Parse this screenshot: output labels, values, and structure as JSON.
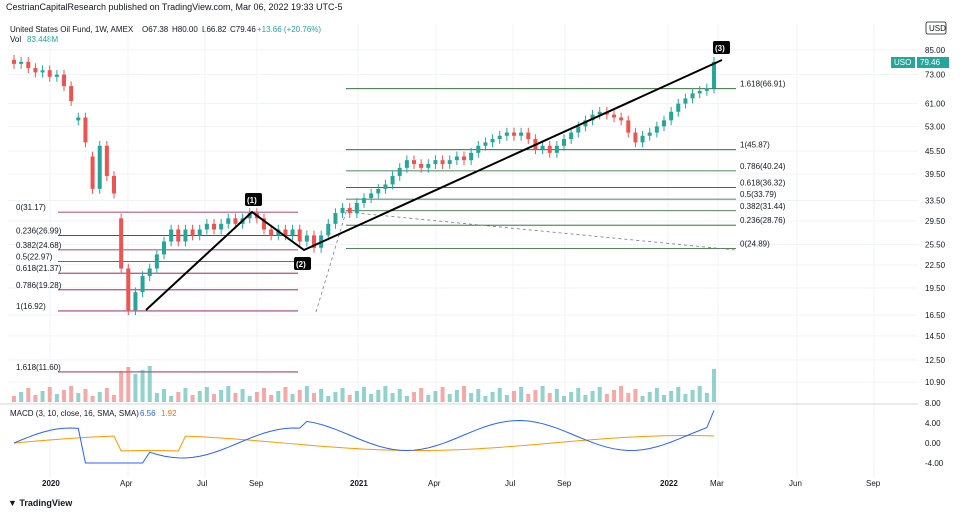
{
  "header": {
    "publisher": "CestrianCapitalResearch published on TradingView.com, Mar 06, 2022 19:33 UTC-5",
    "symbol_line": "United States Oil Fund, 1W, AMEX",
    "o": "O67.38",
    "h": "H80.00",
    "l": "L66.82",
    "c": "C79.46",
    "chg": "+13.66 (+20.76%)",
    "vol_label": "Vol",
    "vol_value": "83.448M",
    "currency": "USD"
  },
  "price_badge": {
    "symbol": "USO",
    "value": "79.46"
  },
  "macd": {
    "label": "MACD (3, 10, close, 16, SMA, SMA)",
    "v1": "6.56",
    "v2": "1.92"
  },
  "footer": {
    "logo": "TradingView"
  },
  "chart_data": {
    "type": "candlestick",
    "title": "United States Oil Fund, 1W, AMEX",
    "y_axis_ticks": [
      "85.00",
      "73.00",
      "61.00",
      "53.00",
      "45.50",
      "39.50",
      "33.50",
      "29.50",
      "25.50",
      "22.50",
      "19.50",
      "16.50",
      "14.50",
      "12.50",
      "10.90"
    ],
    "macd_ticks": [
      "8.00",
      "4.00",
      "0.00",
      "-4.00"
    ],
    "x_axis_ticks": [
      "2020",
      "Apr",
      "Jul",
      "Sep",
      "2021",
      "Apr",
      "Jul",
      "Sep",
      "2022",
      "Mar",
      "Jun",
      "Sep"
    ],
    "candles": [
      {
        "o": 80,
        "c": 78
      },
      {
        "o": 78,
        "c": 79
      },
      {
        "o": 79,
        "c": 76
      },
      {
        "o": 76,
        "c": 74
      },
      {
        "o": 74,
        "c": 75
      },
      {
        "o": 75,
        "c": 72
      },
      {
        "o": 72,
        "c": 73
      },
      {
        "o": 73,
        "c": 68
      },
      {
        "o": 68,
        "c": 62
      },
      {
        "o": 55,
        "c": 56
      },
      {
        "o": 56,
        "c": 48
      },
      {
        "o": 44,
        "c": 36
      },
      {
        "o": 36,
        "c": 47
      },
      {
        "o": 47,
        "c": 39
      },
      {
        "o": 39,
        "c": 35
      },
      {
        "o": 30,
        "c": 22
      },
      {
        "o": 22,
        "c": 17
      },
      {
        "o": 17,
        "c": 19
      },
      {
        "o": 19,
        "c": 21
      },
      {
        "o": 21,
        "c": 22
      },
      {
        "o": 22,
        "c": 24
      },
      {
        "o": 24,
        "c": 26
      },
      {
        "o": 26,
        "c": 28
      },
      {
        "o": 28,
        "c": 26
      },
      {
        "o": 26,
        "c": 28
      },
      {
        "o": 28,
        "c": 27
      },
      {
        "o": 27,
        "c": 28
      },
      {
        "o": 28,
        "c": 29
      },
      {
        "o": 29,
        "c": 28
      },
      {
        "o": 28,
        "c": 29
      },
      {
        "o": 29,
        "c": 30
      },
      {
        "o": 30,
        "c": 29
      },
      {
        "o": 29,
        "c": 30
      },
      {
        "o": 30,
        "c": 31
      },
      {
        "o": 31,
        "c": 30
      },
      {
        "o": 30,
        "c": 28
      },
      {
        "o": 28,
        "c": 27
      },
      {
        "o": 27,
        "c": 28
      },
      {
        "o": 28,
        "c": 27
      },
      {
        "o": 27,
        "c": 28
      },
      {
        "o": 28,
        "c": 26
      },
      {
        "o": 26,
        "c": 27
      },
      {
        "o": 27,
        "c": 25
      },
      {
        "o": 25,
        "c": 27
      },
      {
        "o": 27,
        "c": 29
      },
      {
        "o": 29,
        "c": 31
      },
      {
        "o": 31,
        "c": 32
      },
      {
        "o": 32,
        "c": 31
      },
      {
        "o": 31,
        "c": 33
      },
      {
        "o": 33,
        "c": 34
      },
      {
        "o": 34,
        "c": 35
      },
      {
        "o": 35,
        "c": 36
      },
      {
        "o": 36,
        "c": 37
      },
      {
        "o": 37,
        "c": 39
      },
      {
        "o": 39,
        "c": 41
      },
      {
        "o": 41,
        "c": 43
      },
      {
        "o": 43,
        "c": 42
      },
      {
        "o": 42,
        "c": 41
      },
      {
        "o": 41,
        "c": 42
      },
      {
        "o": 42,
        "c": 43
      },
      {
        "o": 43,
        "c": 42
      },
      {
        "o": 42,
        "c": 43
      },
      {
        "o": 43,
        "c": 44
      },
      {
        "o": 44,
        "c": 43
      },
      {
        "o": 43,
        "c": 45
      },
      {
        "o": 45,
        "c": 47
      },
      {
        "o": 47,
        "c": 48
      },
      {
        "o": 48,
        "c": 49
      },
      {
        "o": 49,
        "c": 50
      },
      {
        "o": 50,
        "c": 51
      },
      {
        "o": 51,
        "c": 50
      },
      {
        "o": 50,
        "c": 51
      },
      {
        "o": 51,
        "c": 49
      },
      {
        "o": 49,
        "c": 46
      },
      {
        "o": 46,
        "c": 47
      },
      {
        "o": 47,
        "c": 45
      },
      {
        "o": 45,
        "c": 47
      },
      {
        "o": 47,
        "c": 49
      },
      {
        "o": 49,
        "c": 51
      },
      {
        "o": 51,
        "c": 53
      },
      {
        "o": 53,
        "c": 55
      },
      {
        "o": 55,
        "c": 57
      },
      {
        "o": 57,
        "c": 58
      },
      {
        "o": 58,
        "c": 57
      },
      {
        "o": 57,
        "c": 56
      },
      {
        "o": 56,
        "c": 55
      },
      {
        "o": 55,
        "c": 51
      },
      {
        "o": 51,
        "c": 48
      },
      {
        "o": 48,
        "c": 50
      },
      {
        "o": 50,
        "c": 51
      },
      {
        "o": 51,
        "c": 53
      },
      {
        "o": 53,
        "c": 55
      },
      {
        "o": 55,
        "c": 58
      },
      {
        "o": 58,
        "c": 61
      },
      {
        "o": 61,
        "c": 63
      },
      {
        "o": 63,
        "c": 65
      },
      {
        "o": 65,
        "c": 66
      },
      {
        "o": 66,
        "c": 67
      },
      {
        "o": 67,
        "c": 79
      }
    ],
    "fib_left": [
      {
        "label": "0(31.17)",
        "value": 31.17
      },
      {
        "label": "0.236(26.99)",
        "value": 26.99
      },
      {
        "label": "0.382(24.68)",
        "value": 24.68
      },
      {
        "label": "0.5(22.97)",
        "value": 22.97
      },
      {
        "label": "0.618(21.37)",
        "value": 21.37
      },
      {
        "label": "0.786(19.28)",
        "value": 19.28
      },
      {
        "label": "1(16.92)",
        "value": 16.92
      },
      {
        "label": "1.618(11.60)",
        "value": 11.6
      }
    ],
    "fib_right": [
      {
        "label": "1.618(66.91)",
        "value": 66.91
      },
      {
        "label": "1(45.87)",
        "value": 45.87
      },
      {
        "label": "0.786(40.24)",
        "value": 40.24
      },
      {
        "label": "0.618(36.32)",
        "value": 36.32
      },
      {
        "label": "0.5(33.79)",
        "value": 33.79
      },
      {
        "label": "0.382(31.44)",
        "value": 31.44
      },
      {
        "label": "0.236(28.76)",
        "value": 28.76
      },
      {
        "label": "0(24.89)",
        "value": 24.89
      }
    ],
    "wave_labels": [
      "(1)",
      "(2)",
      "(3)"
    ]
  }
}
